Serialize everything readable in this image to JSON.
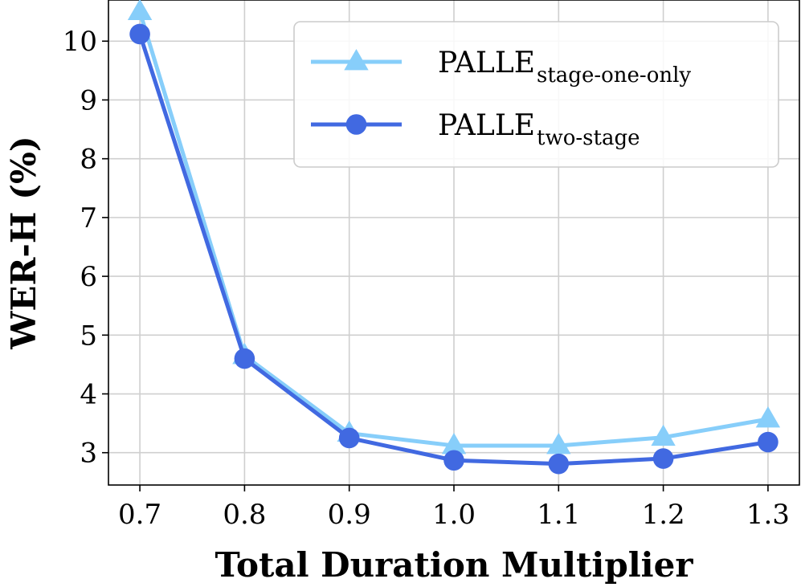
{
  "chart_data": {
    "type": "line",
    "xlabel": "Total Duration Multiplier",
    "ylabel": "WER-H (%)",
    "x": [
      0.7,
      0.8,
      0.9,
      1.0,
      1.1,
      1.2,
      1.3
    ],
    "x_tick_labels": [
      "0.7",
      "0.8",
      "0.9",
      "1.0",
      "1.1",
      "1.2",
      "1.3"
    ],
    "y_ticks": [
      3,
      4,
      5,
      6,
      7,
      8,
      9,
      10
    ],
    "xlim": [
      0.67,
      1.33
    ],
    "ylim": [
      2.45,
      10.7
    ],
    "grid": true,
    "legend_position": "upper-right",
    "series": [
      {
        "name": "PALLE",
        "name_subscript": "stage-one-only",
        "color": "#87cefa",
        "marker": "triangle",
        "values": [
          10.5,
          4.65,
          3.33,
          3.12,
          3.12,
          3.26,
          3.57
        ]
      },
      {
        "name": "PALLE",
        "name_subscript": "two-stage",
        "color": "#4169e1",
        "marker": "circle",
        "values": [
          10.12,
          4.6,
          3.25,
          2.87,
          2.81,
          2.9,
          3.18
        ]
      }
    ]
  }
}
